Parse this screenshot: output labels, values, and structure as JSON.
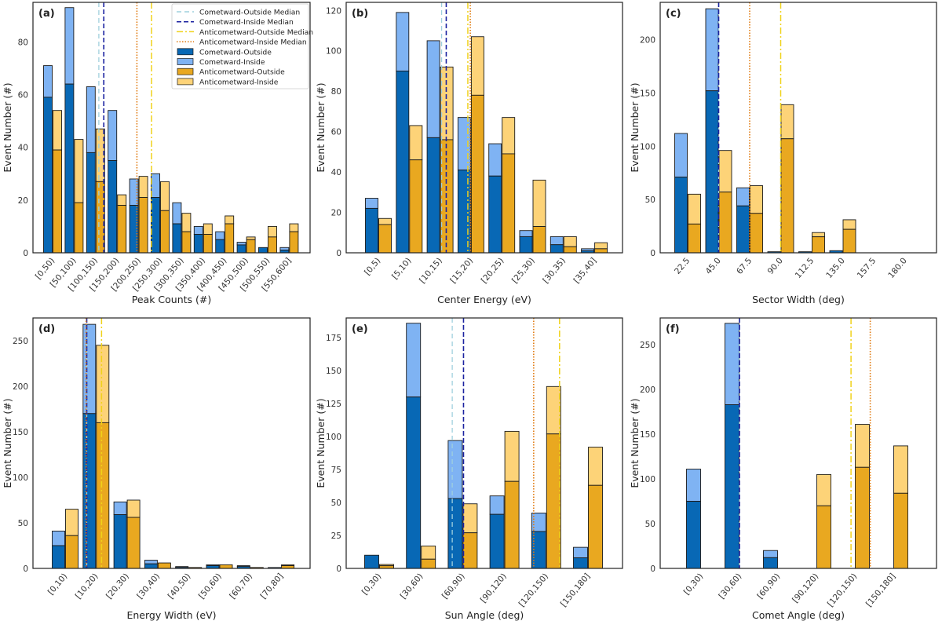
{
  "colors": {
    "cometward_outside": "#0868b5",
    "cometward_inside": "#7fb3f3",
    "anticometward_outside": "#e9a820",
    "anticometward_inside": "#fdd378",
    "median_cometward_outside": "#9fd0de",
    "median_cometward_inside": "#1b22a0",
    "median_anticometward_outside": "#f0d21a",
    "median_anticometward_inside": "#e07a10"
  },
  "legend": {
    "median_cometward_outside": "Cometward-Outside Median",
    "median_cometward_inside": "Cometward-Inside Median",
    "median_anticometward_outside": "Anticometward-Outside Median",
    "median_anticometward_inside": "Anticometward-Inside Median",
    "cometward_outside": "Cometward-Outside",
    "cometward_inside": "Cometward-Inside",
    "anticometward_outside": "Anticometward-Outside",
    "anticometward_inside": "Anticometward-Inside"
  },
  "chart_data": [
    {
      "type": "bar",
      "panel": "(a)",
      "xlabel": "Peak Counts (#)",
      "ylabel": "Event Number (#)",
      "ylim": [
        0,
        95
      ],
      "yticks": [
        0,
        20,
        40,
        60,
        80
      ],
      "categories": [
        "[0,50)",
        "[50,100)",
        "[100,150)",
        "[150,200)",
        "[200,250)",
        "[250,300)",
        "[300,350)",
        "[350,400)",
        "[400,450)",
        "[450,500)",
        "[500,550)",
        "[550,600]"
      ],
      "cometward_outside": [
        59,
        64,
        38,
        35,
        18,
        21,
        11,
        7,
        5,
        3,
        2,
        1
      ],
      "cometward_total": [
        71,
        93,
        63,
        54,
        28,
        30,
        19,
        10,
        8,
        4,
        0,
        2
      ],
      "anticometward_outside": [
        39,
        19,
        27,
        18,
        21,
        16,
        8,
        7,
        11,
        5,
        6,
        8
      ],
      "anticometward_total": [
        54,
        43,
        47,
        22,
        29,
        27,
        15,
        11,
        14,
        6,
        10,
        11
      ],
      "medians": {
        "cometward_outside": 2.15,
        "cometward_inside": 2.38,
        "anticometward_outside": 4.6,
        "anticometward_inside": 3.92
      },
      "legend_shown": true
    },
    {
      "type": "bar",
      "panel": "(b)",
      "xlabel": "Center Energy (eV)",
      "ylabel": "Event Number (#)",
      "ylim": [
        0,
        124
      ],
      "yticks": [
        0,
        20,
        40,
        60,
        80,
        100,
        120
      ],
      "categories": [
        "[0,5)",
        "[5,10)",
        "[10,15)",
        "[15,20)",
        "[20,25)",
        "[25,30)",
        "[30,35)",
        "[35,40]"
      ],
      "cometward_outside": [
        22,
        90,
        57,
        41,
        38,
        8,
        4,
        1
      ],
      "cometward_total": [
        27,
        119,
        105,
        67,
        54,
        11,
        8,
        2
      ],
      "anticometward_outside": [
        14,
        46,
        56,
        78,
        49,
        13,
        3,
        2
      ],
      "anticometward_total": [
        17,
        63,
        92,
        107,
        67,
        36,
        8,
        5
      ],
      "medians": {
        "cometward_outside": 2.05,
        "cometward_inside": 2.2,
        "anticometward_outside": 2.9,
        "anticometward_inside": 2.98
      }
    },
    {
      "type": "bar",
      "panel": "(c)",
      "xlabel": "Sector Width (deg)",
      "ylabel": "Event Number (#)",
      "ylim": [
        0,
        235
      ],
      "yticks": [
        0,
        50,
        100,
        150,
        200
      ],
      "categories": [
        "22.5",
        "45.0",
        "67.5",
        "90.0",
        "112.5",
        "135.0",
        "157.5",
        "180.0"
      ],
      "cometward_outside": [
        71,
        152,
        44,
        1,
        1,
        2,
        0,
        0
      ],
      "cometward_total": [
        112,
        229,
        61,
        1,
        1,
        2,
        0,
        0
      ],
      "anticometward_outside": [
        27,
        57,
        37,
        107,
        15,
        22,
        0,
        0
      ],
      "anticometward_total": [
        55,
        96,
        63,
        139,
        19,
        31,
        0,
        0
      ],
      "medians": {
        "cometward_outside": 1.0,
        "cometward_inside": 1.0,
        "anticometward_outside": 3.0,
        "anticometward_inside": 2.0
      }
    },
    {
      "type": "bar",
      "panel": "(d)",
      "xlabel": "Energy Width (eV)",
      "ylabel": "Event Number (#)",
      "ylim": [
        0,
        275
      ],
      "yticks": [
        0,
        50,
        100,
        150,
        200,
        250
      ],
      "categories": [
        "[0,10)",
        "[10,20)",
        "[20,30)",
        "[30,40)",
        "[40,50)",
        "[50,60)",
        "[60,70)",
        "[70,80]"
      ],
      "cometward_outside": [
        25,
        170,
        59,
        5,
        1,
        3,
        2,
        0
      ],
      "cometward_total": [
        41,
        268,
        73,
        9,
        2,
        4,
        3,
        1
      ],
      "anticometward_outside": [
        36,
        160,
        56,
        6,
        1,
        4,
        1,
        3
      ],
      "anticometward_total": [
        65,
        245,
        75,
        6,
        1,
        4,
        1,
        4
      ],
      "medians": {
        "cometward_outside": 0.7,
        "cometward_inside": 0.7,
        "anticometward_outside": 1.18,
        "anticometward_inside": 0.68
      }
    },
    {
      "type": "bar",
      "panel": "(e)",
      "xlabel": "Sun Angle (deg)",
      "ylabel": "Event Number (#)",
      "ylim": [
        0,
        190
      ],
      "yticks": [
        0,
        25,
        50,
        75,
        100,
        125,
        150,
        175
      ],
      "categories": [
        "[0,30)",
        "[30,60)",
        "[60,90)",
        "[90,120)",
        "[120,150)",
        "[150,180]"
      ],
      "cometward_outside": [
        10,
        130,
        53,
        41,
        28,
        8
      ],
      "cometward_total": [
        10,
        186,
        97,
        55,
        42,
        16
      ],
      "anticometward_outside": [
        2,
        7,
        27,
        66,
        102,
        63
      ],
      "anticometward_total": [
        3,
        17,
        49,
        104,
        138,
        92
      ],
      "medians": {
        "cometward_outside": 1.75,
        "cometward_inside": 2.02,
        "anticometward_outside": 4.32,
        "anticometward_inside": 3.7
      }
    },
    {
      "type": "bar",
      "panel": "(f)",
      "xlabel": "Comet Angle (deg)",
      "ylabel": "Event Number (#)",
      "ylim": [
        0,
        280
      ],
      "yticks": [
        0,
        50,
        100,
        150,
        200,
        250
      ],
      "categories": [
        "[0,30)",
        "[30,60)",
        "[60,90)",
        "[90,120)",
        "[120,150)",
        "[150,180]"
      ],
      "cometward_outside": [
        75,
        183,
        12,
        0,
        0,
        0
      ],
      "cometward_total": [
        111,
        274,
        20,
        0,
        0,
        0
      ],
      "anticometward_outside": [
        0,
        0,
        0,
        70,
        113,
        84
      ],
      "anticometward_total": [
        0,
        0,
        0,
        105,
        161,
        137
      ],
      "medians": {
        "cometward_outside": 1.0,
        "cometward_inside": 1.0,
        "anticometward_outside": 3.9,
        "anticometward_inside": 4.4
      }
    }
  ]
}
